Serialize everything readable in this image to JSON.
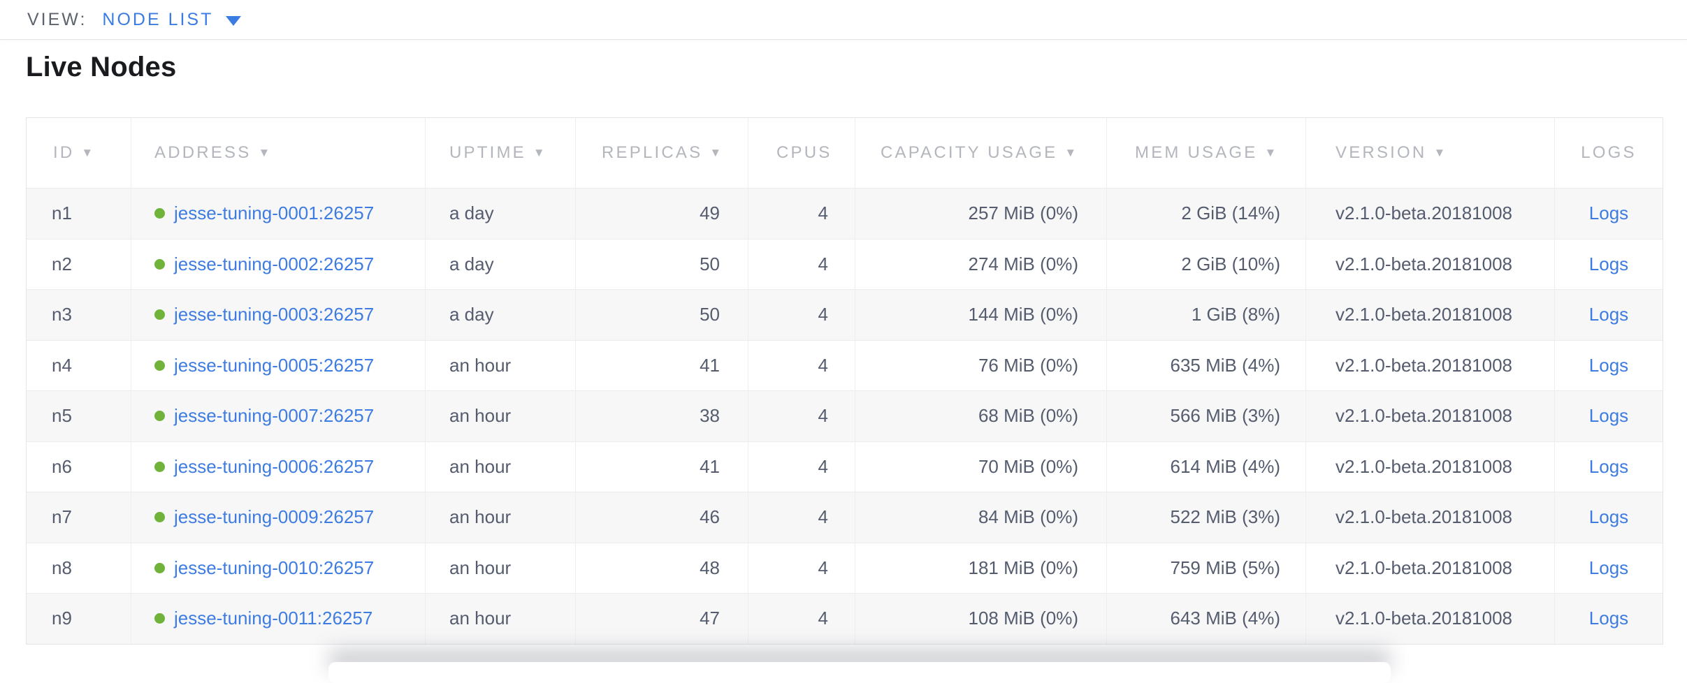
{
  "toolbar": {
    "view_label": "VIEW:",
    "view_value": "NODE LIST"
  },
  "page": {
    "title": "Live Nodes"
  },
  "table": {
    "columns": [
      {
        "key": "id",
        "label": "ID",
        "sortable": true,
        "sort_indicator": "▼"
      },
      {
        "key": "address",
        "label": "ADDRESS",
        "sortable": true,
        "sort_indicator": "▼"
      },
      {
        "key": "uptime",
        "label": "UPTIME",
        "sortable": true,
        "sort_indicator": "▼"
      },
      {
        "key": "replicas",
        "label": "REPLICAS",
        "sortable": true,
        "sort_indicator": "▼"
      },
      {
        "key": "cpus",
        "label": "CPUS",
        "sortable": false,
        "sort_indicator": ""
      },
      {
        "key": "capacity",
        "label": "CAPACITY USAGE",
        "sortable": true,
        "sort_indicator": "▼"
      },
      {
        "key": "mem",
        "label": "MEM USAGE",
        "sortable": true,
        "sort_indicator": "▼"
      },
      {
        "key": "version",
        "label": "VERSION",
        "sortable": true,
        "sort_indicator": "▼"
      },
      {
        "key": "logs",
        "label": "LOGS",
        "sortable": false,
        "sort_indicator": ""
      }
    ],
    "rows": [
      {
        "id": "n1",
        "address": "jesse-tuning-0001:26257",
        "uptime": "a day",
        "replicas": "49",
        "cpus": "4",
        "capacity": "257 MiB (0%)",
        "mem": "2 GiB (14%)",
        "version": "v2.1.0-beta.20181008",
        "logs": "Logs"
      },
      {
        "id": "n2",
        "address": "jesse-tuning-0002:26257",
        "uptime": "a day",
        "replicas": "50",
        "cpus": "4",
        "capacity": "274 MiB (0%)",
        "mem": "2 GiB (10%)",
        "version": "v2.1.0-beta.20181008",
        "logs": "Logs"
      },
      {
        "id": "n3",
        "address": "jesse-tuning-0003:26257",
        "uptime": "a day",
        "replicas": "50",
        "cpus": "4",
        "capacity": "144 MiB (0%)",
        "mem": "1 GiB (8%)",
        "version": "v2.1.0-beta.20181008",
        "logs": "Logs"
      },
      {
        "id": "n4",
        "address": "jesse-tuning-0005:26257",
        "uptime": "an hour",
        "replicas": "41",
        "cpus": "4",
        "capacity": "76 MiB (0%)",
        "mem": "635 MiB (4%)",
        "version": "v2.1.0-beta.20181008",
        "logs": "Logs"
      },
      {
        "id": "n5",
        "address": "jesse-tuning-0007:26257",
        "uptime": "an hour",
        "replicas": "38",
        "cpus": "4",
        "capacity": "68 MiB (0%)",
        "mem": "566 MiB (3%)",
        "version": "v2.1.0-beta.20181008",
        "logs": "Logs"
      },
      {
        "id": "n6",
        "address": "jesse-tuning-0006:26257",
        "uptime": "an hour",
        "replicas": "41",
        "cpus": "4",
        "capacity": "70 MiB (0%)",
        "mem": "614 MiB (4%)",
        "version": "v2.1.0-beta.20181008",
        "logs": "Logs"
      },
      {
        "id": "n7",
        "address": "jesse-tuning-0009:26257",
        "uptime": "an hour",
        "replicas": "46",
        "cpus": "4",
        "capacity": "84 MiB (0%)",
        "mem": "522 MiB (3%)",
        "version": "v2.1.0-beta.20181008",
        "logs": "Logs"
      },
      {
        "id": "n8",
        "address": "jesse-tuning-0010:26257",
        "uptime": "an hour",
        "replicas": "48",
        "cpus": "4",
        "capacity": "181 MiB (0%)",
        "mem": "759 MiB (5%)",
        "version": "v2.1.0-beta.20181008",
        "logs": "Logs"
      },
      {
        "id": "n9",
        "address": "jesse-tuning-0011:26257",
        "uptime": "an hour",
        "replicas": "47",
        "cpus": "4",
        "capacity": "108 MiB (0%)",
        "mem": "643 MiB (4%)",
        "version": "v2.1.0-beta.20181008",
        "logs": "Logs"
      }
    ]
  },
  "colors": {
    "accent_blue": "#3a7ce1",
    "link_blue": "#3e7ce1",
    "status_green": "#70b33a",
    "header_gray": "#b3b6bc",
    "body_slate": "#545c6e",
    "row_stripe": "#f7f7f8"
  }
}
